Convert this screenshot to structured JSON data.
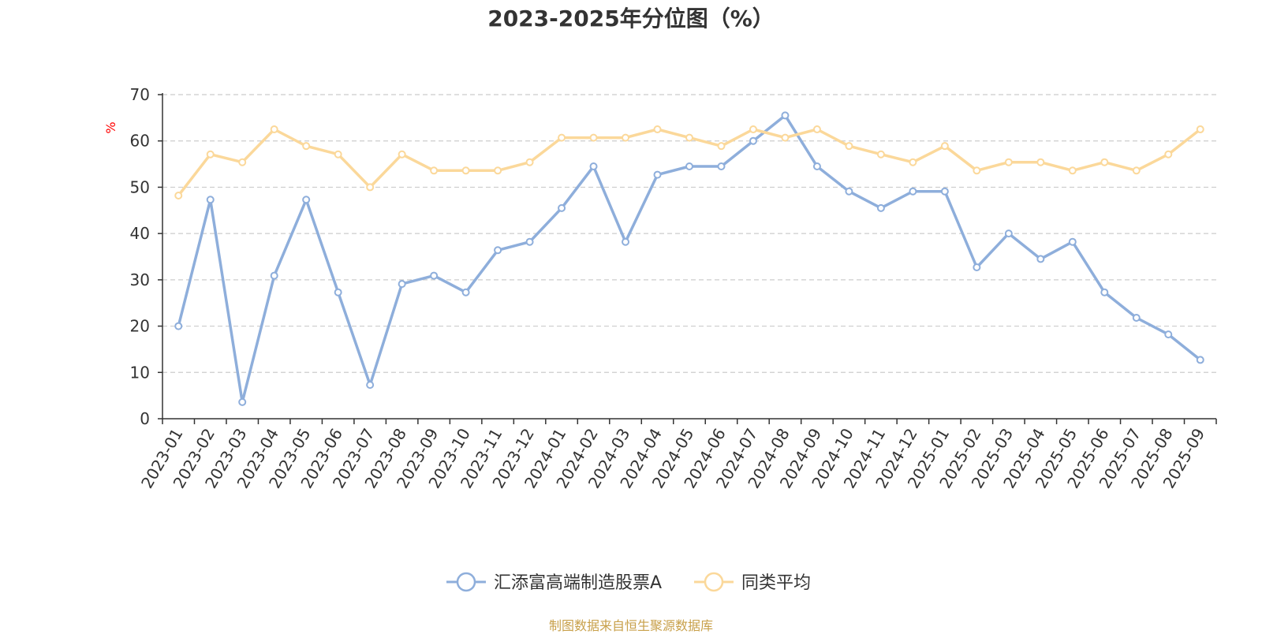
{
  "chart_data": {
    "type": "line",
    "title": "2023-2025年分位图（%）",
    "ylabel": "%",
    "xlabel": "",
    "ylim": [
      0,
      70
    ],
    "yticks": [
      0,
      10,
      20,
      30,
      40,
      50,
      60,
      70
    ],
    "grid": "horizontal dashed",
    "legend_position": "bottom-center",
    "categories": [
      "2023-01",
      "2023-02",
      "2023-03",
      "2023-04",
      "2023-05",
      "2023-06",
      "2023-07",
      "2023-08",
      "2023-09",
      "2023-10",
      "2023-11",
      "2023-12",
      "2024-01",
      "2024-02",
      "2024-03",
      "2024-04",
      "2024-05",
      "2024-06",
      "2024-07",
      "2024-08",
      "2024-09",
      "2024-10",
      "2024-11",
      "2024-12",
      "2025-01",
      "2025-02",
      "2025-03",
      "2025-04",
      "2025-05",
      "2025-06",
      "2025-07",
      "2025-08",
      "2025-09"
    ],
    "series": [
      {
        "name": "汇添富高端制造股票A",
        "color": "#8eaedb",
        "values": [
          20.0,
          47.3,
          3.6,
          30.9,
          47.3,
          27.3,
          7.3,
          29.1,
          30.9,
          27.3,
          36.4,
          38.2,
          45.5,
          54.5,
          38.2,
          52.7,
          54.5,
          54.5,
          60.0,
          65.5,
          54.5,
          49.1,
          45.5,
          49.1,
          49.1,
          32.7,
          40.0,
          34.5,
          38.2,
          27.3,
          21.8,
          18.2,
          12.7
        ]
      },
      {
        "name": "同类平均",
        "color": "#fbd89a",
        "values": [
          48.2,
          57.1,
          55.4,
          62.5,
          58.9,
          57.1,
          50.0,
          57.1,
          53.6,
          53.6,
          53.6,
          55.4,
          60.7,
          60.7,
          60.7,
          62.5,
          60.7,
          58.9,
          62.5,
          60.7,
          62.5,
          58.9,
          57.1,
          55.4,
          58.9,
          53.6,
          55.4,
          55.4,
          53.6,
          55.4,
          53.6,
          57.1,
          62.5
        ]
      }
    ]
  },
  "footer": {
    "source": "制图数据来自恒生聚源数据库"
  }
}
